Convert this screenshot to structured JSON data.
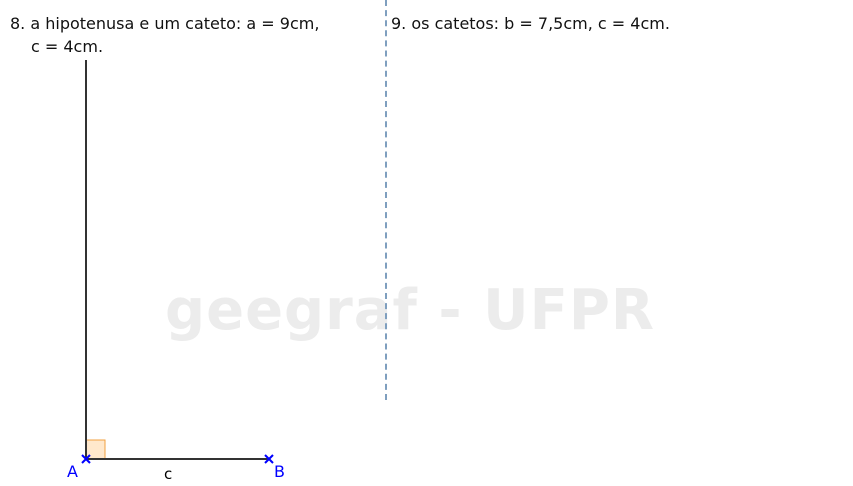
{
  "problems": {
    "p8": {
      "line1": "8. a hipotenusa e um cateto: a = 9cm,",
      "line2": "c = 4cm."
    },
    "p9": {
      "text": "9. os catetos: b = 7,5cm, c = 4cm."
    }
  },
  "watermark": "geegraf - UFPR",
  "construction": {
    "points": {
      "a": "A",
      "b": "B"
    },
    "segment_label": "c",
    "colors": {
      "points": "#0000ff",
      "lines": "#333333",
      "right_angle_fill": "#ffe8cc",
      "right_angle_stroke": "#f0a040",
      "divider": "#7f9fbf"
    }
  }
}
